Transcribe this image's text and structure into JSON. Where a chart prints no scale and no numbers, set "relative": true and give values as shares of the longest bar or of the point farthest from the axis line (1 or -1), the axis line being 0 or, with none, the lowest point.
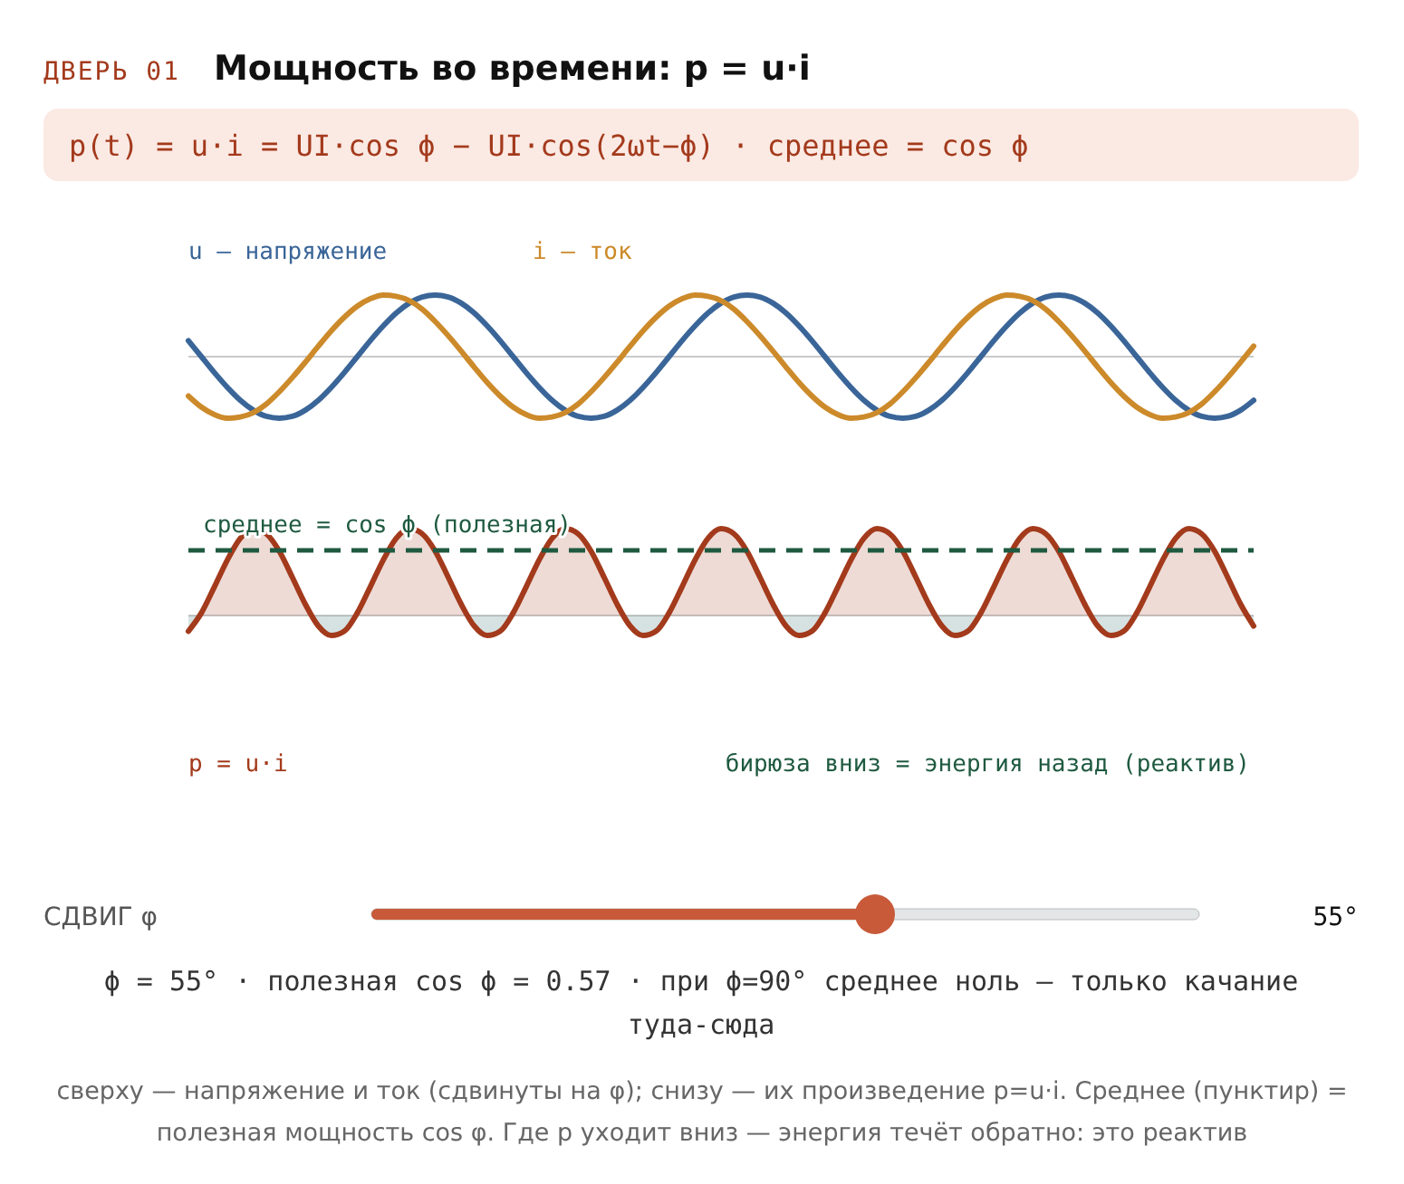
{
  "chart_data": [
    {
      "type": "line",
      "title": "Мощность во времени: p = u·i",
      "subtitle": "p(t) = u·i = UI·cos ϕ − UI·cos(2ωt−ϕ) · среднее = cos ϕ",
      "relative": true,
      "legend": "top left",
      "annotations": [
        "ДВЕРЬ 01",
        "СДВИГ φ",
        "55°",
        "ϕ = 55° · полезная cos ϕ = 0.57 · при ϕ=90° среднее ноль — только качание туда-сюда",
        "сверху — напряжение и ток (сдвинуты на φ); снизу — их произведение p=u·i. Среднее (пунктир) = полезная мощность cos φ. Где p уходит вниз — энергия течёт обратно: это реактив"
      ],
      "categories": [
        null,
        null,
        null,
        null,
        null,
        null,
        null,
        null,
        null,
        null,
        null,
        null,
        null,
        null,
        null,
        null,
        null,
        null,
        null,
        null,
        null,
        null,
        null,
        null,
        null,
        null,
        null,
        null,
        null,
        null,
        null,
        null,
        null,
        null,
        null,
        null,
        null,
        null,
        null,
        null,
        null,
        null,
        null,
        null,
        null,
        null,
        null,
        null,
        null,
        null,
        null,
        null,
        null,
        null,
        null,
        null,
        null,
        null,
        null,
        null,
        null,
        null,
        null,
        null,
        null,
        null,
        null,
        null,
        null,
        null,
        null,
        null,
        null,
        null,
        null,
        null,
        null,
        null,
        null,
        null,
        null,
        null,
        null
      ],
      "series": [
        {
          "name": "u — напряжение",
          "color": "#3a6598",
          "values": [
            0.26,
            0,
            -0.26,
            -0.5,
            -0.71,
            -0.87,
            -0.97,
            -1,
            -0.97,
            -0.87,
            -0.71,
            -0.5,
            -0.26,
            0,
            0.26,
            0.5,
            0.71,
            0.87,
            0.97,
            1,
            0.97,
            0.87,
            0.71,
            0.5,
            0.26,
            0,
            -0.26,
            -0.5,
            -0.71,
            -0.87,
            -0.97,
            -1,
            -0.97,
            -0.87,
            -0.71,
            -0.5,
            -0.26,
            0,
            0.26,
            0.5,
            0.71,
            0.87,
            0.97,
            1,
            0.97,
            0.87,
            0.71,
            0.5,
            0.26,
            0,
            -0.26,
            -0.5,
            -0.71,
            -0.87,
            -0.97,
            -1,
            -0.97,
            -0.87,
            -0.71,
            -0.5,
            -0.26,
            0,
            0.26,
            0.5,
            0.71,
            0.87,
            0.97,
            1,
            0.97,
            0.87,
            0.71,
            0.5,
            0.26,
            0,
            -0.26,
            -0.5,
            -0.71,
            -0.87,
            -0.97,
            -1,
            -0.97,
            -0.87,
            -0.71
          ]
        },
        {
          "name": "i — ток",
          "color": "#cc8a2a",
          "values": [
            -0.64,
            -0.82,
            -0.94,
            -1,
            -0.98,
            -0.91,
            -0.77,
            -0.57,
            -0.34,
            -0.09,
            0.17,
            0.42,
            0.64,
            0.82,
            0.94,
            1,
            0.98,
            0.91,
            0.77,
            0.57,
            0.34,
            0.09,
            -0.17,
            -0.42,
            -0.64,
            -0.82,
            -0.94,
            -1,
            -0.98,
            -0.91,
            -0.77,
            -0.57,
            -0.34,
            -0.09,
            0.17,
            0.42,
            0.64,
            0.82,
            0.94,
            1,
            0.98,
            0.91,
            0.77,
            0.57,
            0.34,
            0.09,
            -0.17,
            -0.42,
            -0.64,
            -0.82,
            -0.94,
            -1,
            -0.98,
            -0.91,
            -0.77,
            -0.57,
            -0.34,
            -0.09,
            0.17,
            0.42,
            0.64,
            0.82,
            0.94,
            1,
            0.98,
            0.91,
            0.77,
            0.57,
            0.34,
            0.09,
            -0.17,
            -0.42,
            -0.64,
            -0.82,
            -0.94,
            -1,
            -0.98,
            -0.91,
            -0.77,
            -0.57,
            -0.34,
            -0.09,
            0.17
          ]
        }
      ]
    },
    {
      "type": "area",
      "relative": true,
      "legend": "bottom left",
      "annotations": [
        "бирюза вниз = энергия назад (реактив)"
      ],
      "ref_lines": [
        {
          "axis": "y",
          "value": 0.75,
          "label": "среднее = cos ϕ (полезная)",
          "color": "#1f5a40",
          "line_style": "dashed"
        }
      ],
      "categories": [
        null,
        null,
        null,
        null,
        null,
        null,
        null,
        null,
        null,
        null,
        null,
        null,
        null,
        null,
        null,
        null,
        null,
        null,
        null,
        null,
        null,
        null,
        null,
        null,
        null,
        null,
        null,
        null,
        null,
        null,
        null,
        null,
        null,
        null,
        null,
        null,
        null,
        null,
        null,
        null,
        null,
        null,
        null,
        null,
        null,
        null,
        null,
        null,
        null,
        null,
        null,
        null,
        null,
        null,
        null,
        null,
        null,
        null,
        null,
        null,
        null,
        null,
        null,
        null,
        null,
        null,
        null,
        null,
        null,
        null,
        null,
        null,
        null,
        null,
        null,
        null,
        null,
        null,
        null,
        null,
        null,
        null,
        null
      ],
      "series": [
        {
          "name": "p = u·i",
          "color": "#a33a1c",
          "values": [
            -0.18,
            0.03,
            0.33,
            0.64,
            0.89,
            1,
            0.94,
            0.74,
            0.44,
            0.13,
            -0.12,
            -0.23,
            -0.18,
            0.03,
            0.33,
            0.64,
            0.89,
            1,
            0.94,
            0.74,
            0.44,
            0.13,
            -0.12,
            -0.23,
            -0.18,
            0.03,
            0.33,
            0.64,
            0.89,
            1,
            0.94,
            0.74,
            0.44,
            0.13,
            -0.12,
            -0.23,
            -0.18,
            0.03,
            0.33,
            0.64,
            0.89,
            1,
            0.94,
            0.74,
            0.44,
            0.13,
            -0.12,
            -0.23,
            -0.18,
            0.03,
            0.33,
            0.64,
            0.89,
            1,
            0.94,
            0.74,
            0.44,
            0.13,
            -0.12,
            -0.23,
            -0.18,
            0.03,
            0.33,
            0.64,
            0.89,
            1,
            0.94,
            0.74,
            0.44,
            0.13,
            -0.12,
            -0.23,
            -0.18,
            0.03,
            0.33,
            0.64,
            0.89,
            1,
            0.94,
            0.74,
            0.44,
            0.13,
            -0.12
          ]
        }
      ]
    }
  ]
}
